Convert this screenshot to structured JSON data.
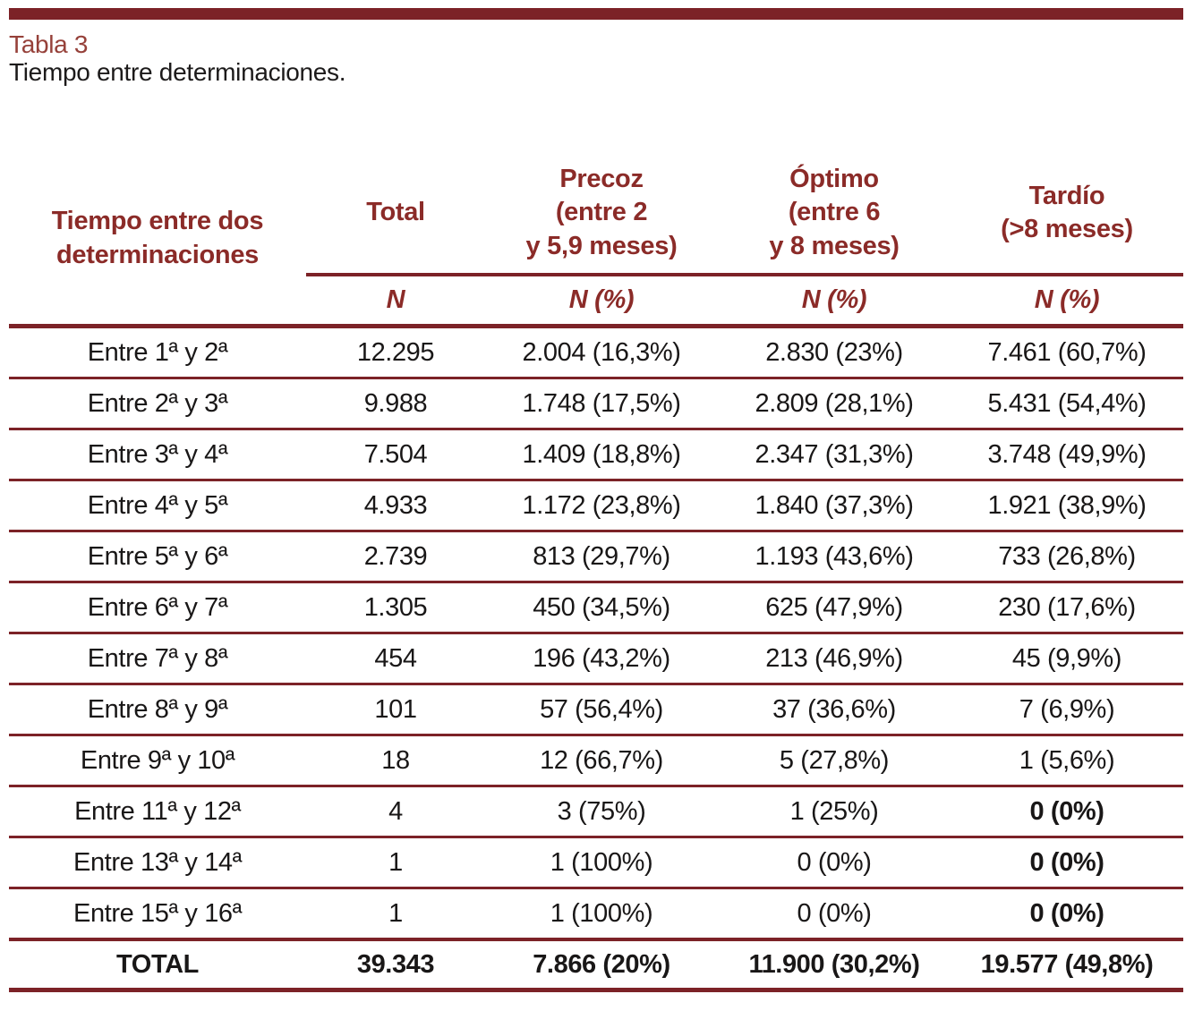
{
  "header": {
    "table_label": "Tabla 3",
    "table_caption": "Tiempo entre determinaciones."
  },
  "colors": {
    "accent_maroon": "#7c2227",
    "header_text_maroon": "#8b2b28",
    "table_label_red": "#96413a",
    "body_text": "#191717"
  },
  "table": {
    "row_header": "Tiempo entre dos\ndeterminaciones",
    "columns": [
      {
        "title": "Total",
        "sub": "N"
      },
      {
        "title": "Precoz\n(entre 2\ny 5,9 meses)",
        "sub": "N (%)"
      },
      {
        "title": "Óptimo\n(entre 6\ny 8 meses)",
        "sub": "N (%)"
      },
      {
        "title": "Tardío\n(>8 meses)",
        "sub": "N (%)"
      }
    ],
    "rows": [
      {
        "label": "Entre 1ª y 2ª",
        "total": "12.295",
        "precoz": "2.004 (16,3%)",
        "optimo": "2.830 (23%)",
        "tardio": "7.461 (60,7%)"
      },
      {
        "label": "Entre 2ª y 3ª",
        "total": "9.988",
        "precoz": "1.748 (17,5%)",
        "optimo": "2.809 (28,1%)",
        "tardio": "5.431 (54,4%)"
      },
      {
        "label": "Entre 3ª y 4ª",
        "total": "7.504",
        "precoz": "1.409 (18,8%)",
        "optimo": "2.347 (31,3%)",
        "tardio": "3.748 (49,9%)"
      },
      {
        "label": "Entre 4ª y 5ª",
        "total": "4.933",
        "precoz": "1.172 (23,8%)",
        "optimo": "1.840 (37,3%)",
        "tardio": "1.921 (38,9%)"
      },
      {
        "label": "Entre 5ª y 6ª",
        "total": "2.739",
        "precoz": "813 (29,7%)",
        "optimo": "1.193 (43,6%)",
        "tardio": "733 (26,8%)"
      },
      {
        "label": "Entre 6ª y 7ª",
        "total": "1.305",
        "precoz": "450 (34,5%)",
        "optimo": "625 (47,9%)",
        "tardio": "230 (17,6%)"
      },
      {
        "label": "Entre 7ª y 8ª",
        "total": "454",
        "precoz": "196 (43,2%)",
        "optimo": "213 (46,9%)",
        "tardio": "45 (9,9%)"
      },
      {
        "label": "Entre 8ª y 9ª",
        "total": "101",
        "precoz": "57 (56,4%)",
        "optimo": "37 (36,6%)",
        "tardio": "7 (6,9%)"
      },
      {
        "label": "Entre 9ª y 10ª",
        "total": "18",
        "precoz": "12 (66,7%)",
        "optimo": "5 (27,8%)",
        "tardio": "1 (5,6%)"
      },
      {
        "label": "Entre 11ª y 12ª",
        "total": "4",
        "precoz": "3 (75%)",
        "optimo": "1 (25%)",
        "tardio": "0 (0%)"
      },
      {
        "label": "Entre 13ª y 14ª",
        "total": "1",
        "precoz": "1 (100%)",
        "optimo": "0 (0%)",
        "tardio": "0 (0%)"
      },
      {
        "label": "Entre 15ª y 16ª",
        "total": "1",
        "precoz": "1 (100%)",
        "optimo": "0 (0%)",
        "tardio": "0 (0%)"
      }
    ],
    "total_row": {
      "label": "TOTAL",
      "total": "39.343",
      "precoz": "7.866 (20%)",
      "optimo": "11.900 (30,2%)",
      "tardio": "19.577 (49,8%)"
    }
  }
}
